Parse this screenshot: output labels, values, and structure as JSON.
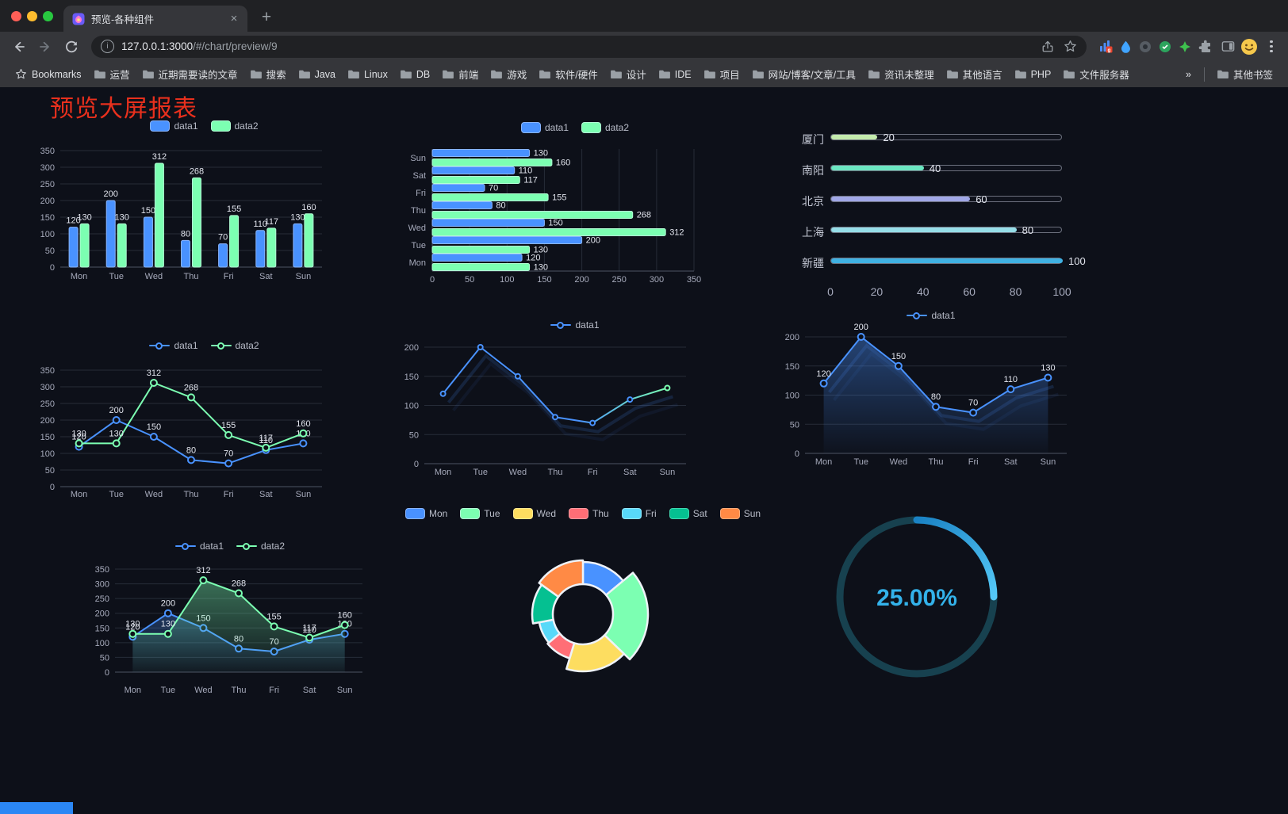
{
  "browser": {
    "traffic_lights": [
      "#ff5f57",
      "#febc2e",
      "#28c840"
    ],
    "tab_title": "预览-各种组件",
    "url_host": "127.0.0.1:3000",
    "url_path": "/#/chart/preview/9",
    "bookmarks_label": "Bookmarks",
    "bookmark_folders": [
      "运营",
      "近期需要读的文章",
      "搜索",
      "Java",
      "Linux",
      "DB",
      "前端",
      "游戏",
      "软件/硬件",
      "设计",
      "IDE",
      "项目",
      "网站/博客/文章/工具",
      "资讯未整理",
      "其他语言",
      "PHP",
      "文件服务器"
    ],
    "overflow_chevron": "»",
    "other_bookmarks_label": "其他书签"
  },
  "page": {
    "title": "预览大屏报表",
    "title_color": "#e8301d",
    "bottom_bar_color": "#2b87f5"
  },
  "theme": {
    "background": "#0d1019",
    "grid_line": "#262c38",
    "axis_line": "#4d5464",
    "tick_text": "#a6aabb",
    "value_text": "#e2e5ee",
    "legend_text": "#b9bdc9"
  },
  "chart_data": [
    {
      "id": "grouped-bar",
      "type": "bar",
      "legend_position": "top",
      "categories": [
        "Mon",
        "Tue",
        "Wed",
        "Thu",
        "Fri",
        "Sat",
        "Sun"
      ],
      "series": [
        {
          "name": "data1",
          "color": "#4992ff",
          "values": [
            120,
            200,
            150,
            80,
            70,
            110,
            130
          ]
        },
        {
          "name": "data2",
          "color": "#7cffb2",
          "values": [
            130,
            130,
            312,
            268,
            155,
            117,
            160
          ]
        }
      ],
      "ylim": [
        0,
        350
      ],
      "ytick_step": 50,
      "point_labels": true
    },
    {
      "id": "horizontal-grouped-bar",
      "type": "bar",
      "orientation": "horizontal",
      "legend_position": "top",
      "categories": [
        "Mon",
        "Tue",
        "Wed",
        "Thu",
        "Fri",
        "Sat",
        "Sun"
      ],
      "category_top": "Sun",
      "series": [
        {
          "name": "data1",
          "color": "#4992ff",
          "values": [
            120,
            200,
            150,
            80,
            70,
            110,
            130
          ]
        },
        {
          "name": "data2",
          "color": "#7cffb2",
          "values": [
            130,
            130,
            312,
            268,
            155,
            117,
            160
          ]
        }
      ],
      "xlim": [
        0,
        350
      ],
      "xtick_step": 50,
      "point_labels": true
    },
    {
      "id": "category-progress-bars",
      "type": "bar",
      "subtype": "progress",
      "categories": [
        "厦门",
        "南阳",
        "北京",
        "上海",
        "新疆"
      ],
      "values": [
        20,
        40,
        60,
        80,
        100
      ],
      "colors": [
        "#c4ebad",
        "#6be6c1",
        "#a0a7e6",
        "#96dee8",
        "#3fb1e3"
      ],
      "xlim": [
        0,
        100
      ],
      "xticks": [
        0,
        20,
        40,
        60,
        80,
        100
      ]
    },
    {
      "id": "two-series-line",
      "type": "line",
      "legend_position": "top",
      "categories": [
        "Mon",
        "Tue",
        "Wed",
        "Thu",
        "Fri",
        "Sat",
        "Sun"
      ],
      "series": [
        {
          "name": "data1",
          "color": "#4992ff",
          "values": [
            120,
            200,
            150,
            80,
            70,
            110,
            130
          ]
        },
        {
          "name": "data2",
          "color": "#7cffb2",
          "values": [
            130,
            130,
            312,
            268,
            155,
            117,
            160
          ]
        }
      ],
      "ylim": [
        0,
        350
      ],
      "ytick_step": 50,
      "point_labels": true
    },
    {
      "id": "single-line-gradient",
      "type": "line",
      "legend_position": "top",
      "categories": [
        "Mon",
        "Tue",
        "Wed",
        "Thu",
        "Fri",
        "Sat",
        "Sun"
      ],
      "series": [
        {
          "name": "data1",
          "color": "#4992ff",
          "color_end": "#7cffb2",
          "values": [
            120,
            200,
            150,
            80,
            70,
            110,
            130
          ]
        }
      ],
      "ylim": [
        0,
        200
      ],
      "ytick_step": 50,
      "point_labels": false
    },
    {
      "id": "single-line-area",
      "type": "line",
      "legend_position": "top",
      "area": true,
      "categories": [
        "Mon",
        "Tue",
        "Wed",
        "Thu",
        "Fri",
        "Sat",
        "Sun"
      ],
      "series": [
        {
          "name": "data1",
          "color": "#4992ff",
          "values": [
            120,
            200,
            150,
            80,
            70,
            110,
            130
          ]
        }
      ],
      "ylim": [
        0,
        200
      ],
      "ytick_step": 50,
      "point_labels": true
    },
    {
      "id": "two-series-area-line",
      "type": "line",
      "legend_position": "top",
      "area": true,
      "categories": [
        "Mon",
        "Tue",
        "Wed",
        "Thu",
        "Fri",
        "Sat",
        "Sun"
      ],
      "series": [
        {
          "name": "data1",
          "color": "#4992ff",
          "values": [
            120,
            200,
            150,
            80,
            70,
            110,
            130
          ]
        },
        {
          "name": "data2",
          "color": "#7cffb2",
          "values": [
            130,
            130,
            312,
            268,
            155,
            117,
            160
          ]
        }
      ],
      "ylim": [
        0,
        350
      ],
      "ytick_step": 50,
      "point_labels": true
    },
    {
      "id": "rose-doughnut",
      "type": "pie",
      "subtype": "rose-doughnut",
      "legend_position": "top",
      "legend": [
        "Mon",
        "Tue",
        "Wed",
        "Thu",
        "Fri",
        "Sat",
        "Sun"
      ],
      "values": [
        120,
        200,
        150,
        80,
        70,
        110,
        130
      ],
      "colors": [
        "#4992ff",
        "#7cffb2",
        "#fddd60",
        "#ff6e76",
        "#58d9f9",
        "#05c091",
        "#ff8a45"
      ],
      "border_color": "#eef2f8"
    },
    {
      "id": "ring-progress",
      "type": "gauge",
      "value_percent": 25,
      "label": "25.00%",
      "label_color": "#33b2ea",
      "track_color": "#17414f",
      "gradient": [
        "#1a82c4",
        "#55c8f6"
      ]
    }
  ]
}
